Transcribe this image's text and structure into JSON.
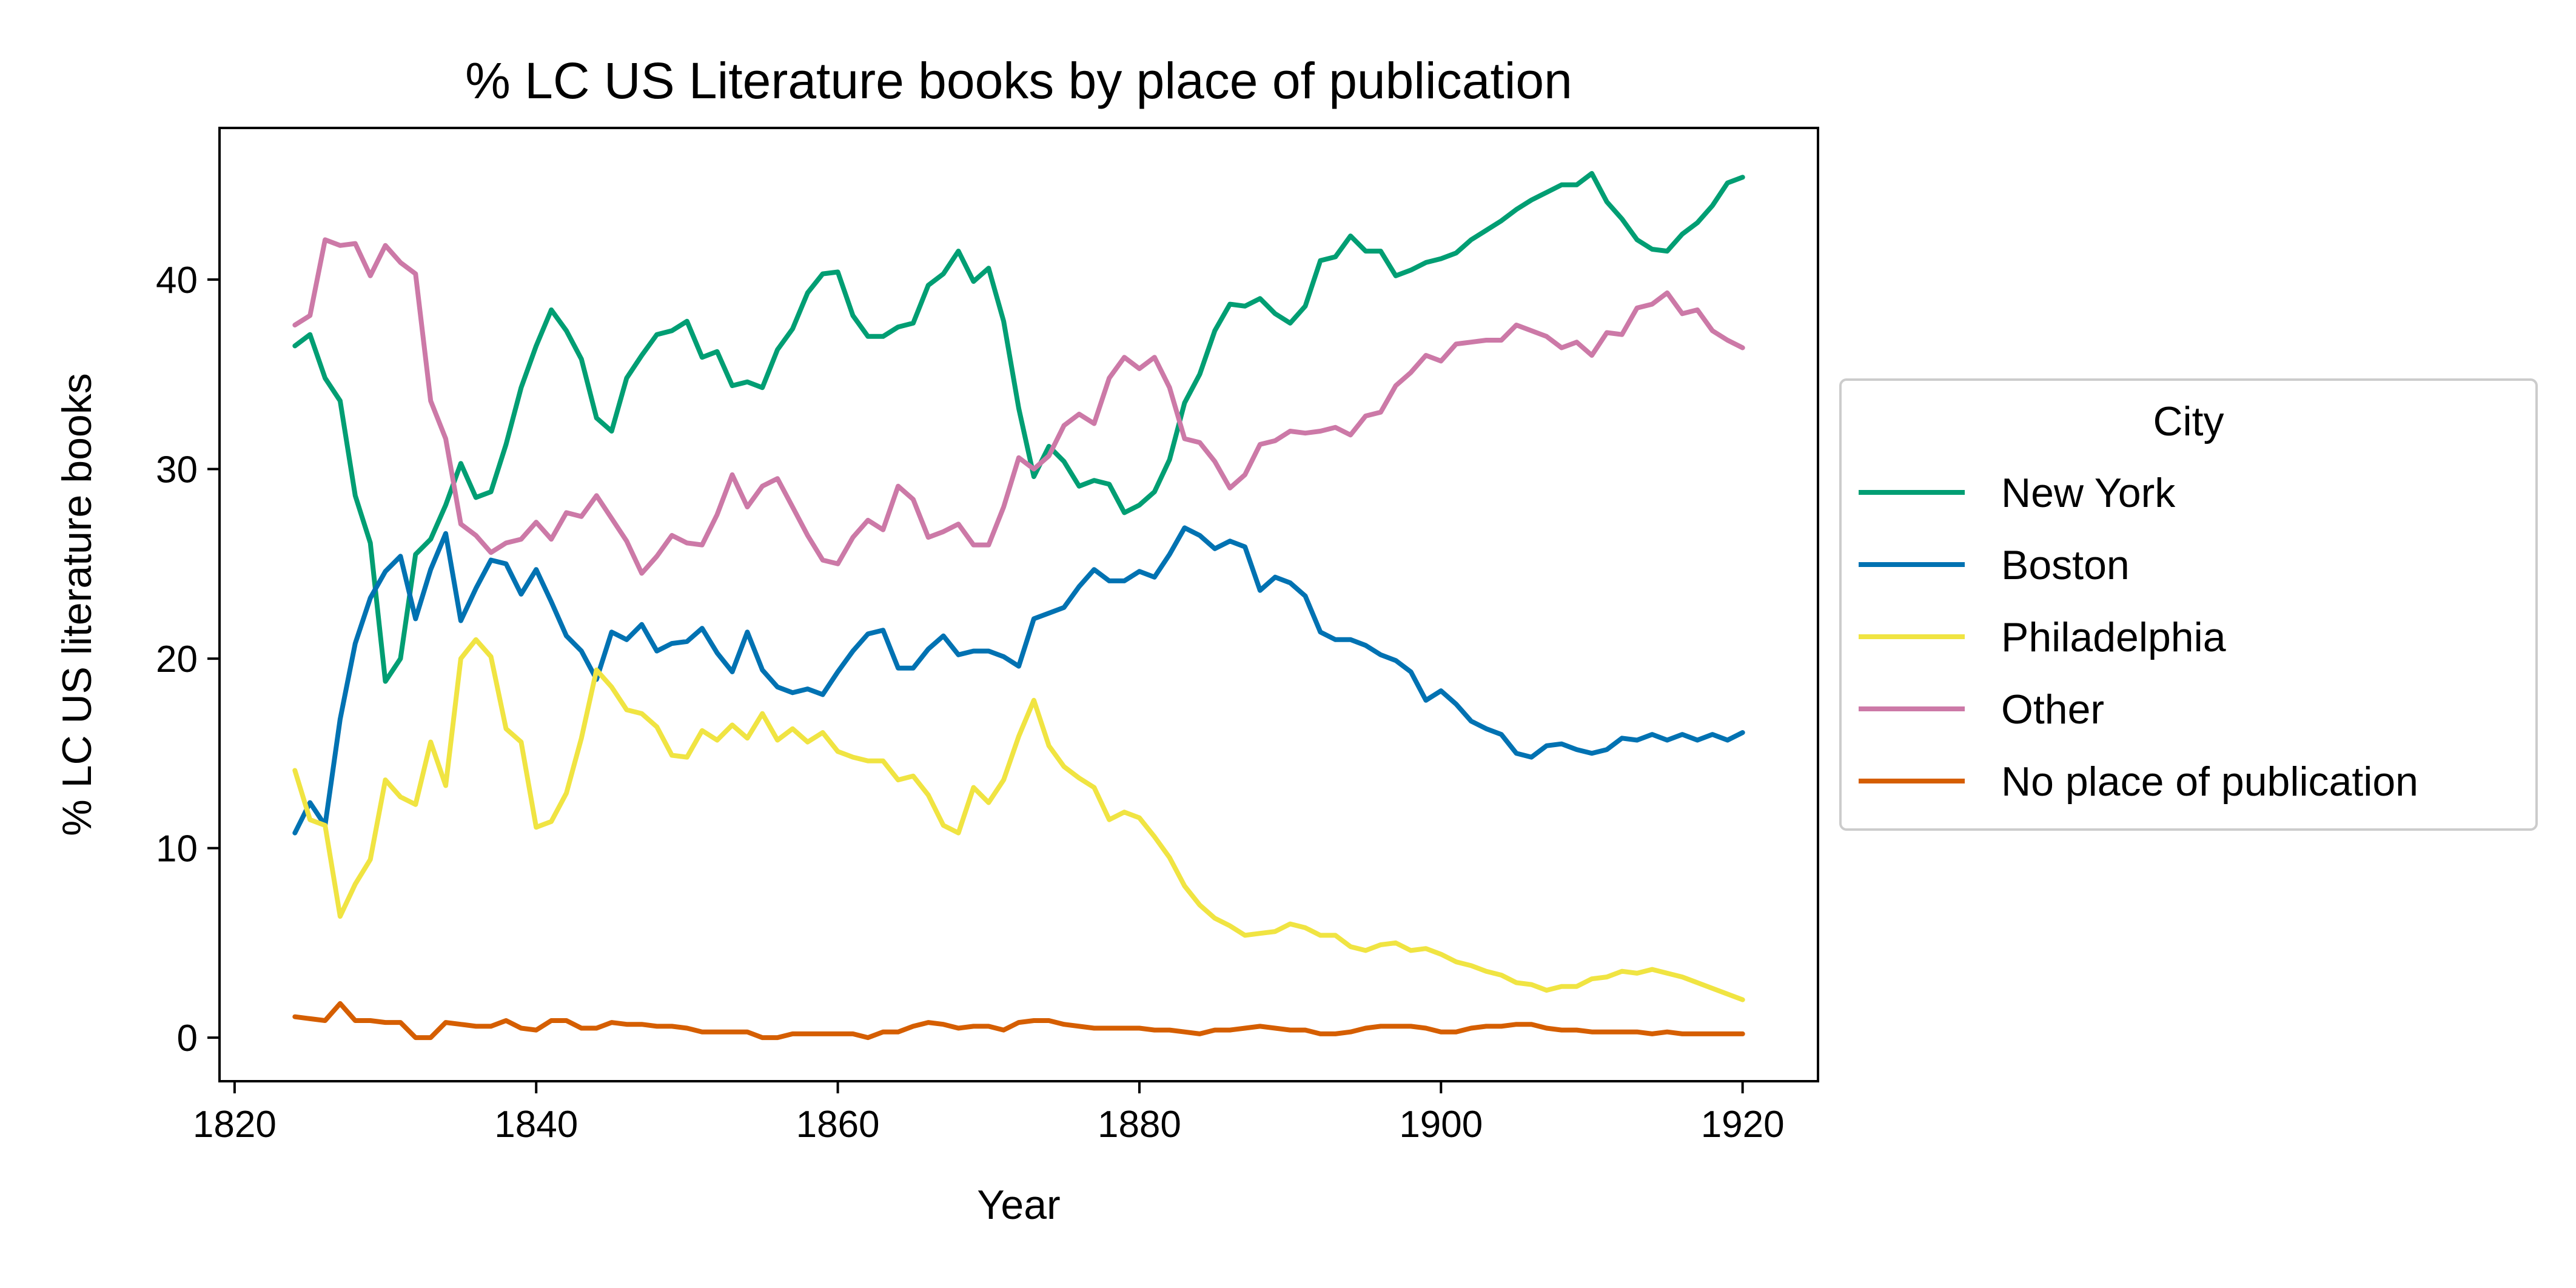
{
  "chart_data": {
    "type": "line",
    "title": "% LC US Literature books by place of publication",
    "xlabel": "Year",
    "ylabel": "% LC US literature books",
    "xlim": [
      1819,
      1925
    ],
    "ylim": [
      -2.3,
      48
    ],
    "x_ticks": [
      1820,
      1840,
      1860,
      1880,
      1900,
      1920
    ],
    "y_ticks": [
      0,
      10,
      20,
      30,
      40
    ],
    "grid": false,
    "legend": {
      "title": "City",
      "placement": "right-outside"
    },
    "x": [
      1824,
      1825,
      1826,
      1827,
      1828,
      1829,
      1830,
      1831,
      1832,
      1833,
      1834,
      1835,
      1836,
      1837,
      1838,
      1839,
      1840,
      1841,
      1842,
      1843,
      1844,
      1845,
      1846,
      1847,
      1848,
      1849,
      1850,
      1851,
      1852,
      1853,
      1854,
      1855,
      1856,
      1857,
      1858,
      1859,
      1860,
      1861,
      1862,
      1863,
      1864,
      1865,
      1866,
      1867,
      1868,
      1869,
      1870,
      1871,
      1872,
      1873,
      1874,
      1875,
      1876,
      1877,
      1878,
      1879,
      1880,
      1881,
      1882,
      1883,
      1884,
      1885,
      1886,
      1887,
      1888,
      1889,
      1890,
      1891,
      1892,
      1893,
      1894,
      1895,
      1896,
      1897,
      1898,
      1899,
      1900,
      1901,
      1902,
      1903,
      1904,
      1905,
      1906,
      1907,
      1908,
      1909,
      1910,
      1911,
      1912,
      1913,
      1914,
      1915,
      1916,
      1917,
      1918,
      1919,
      1920
    ],
    "series": [
      {
        "name": "New York",
        "color": "#009e73",
        "values": [
          36.5,
          37.1,
          34.8,
          33.6,
          28.6,
          26.1,
          18.8,
          20.0,
          25.5,
          26.3,
          28.1,
          30.3,
          28.5,
          28.8,
          31.3,
          34.3,
          36.5,
          38.4,
          37.3,
          35.8,
          32.7,
          32.0,
          34.8,
          36.0,
          37.1,
          37.3,
          37.8,
          35.9,
          36.2,
          34.4,
          34.6,
          34.3,
          36.3,
          37.4,
          39.3,
          40.3,
          40.4,
          38.1,
          37.0,
          37.0,
          37.5,
          37.7,
          39.7,
          40.3,
          41.5,
          39.9,
          40.6,
          37.8,
          33.2,
          29.6,
          31.2,
          30.4,
          29.1,
          29.4,
          29.2,
          27.7,
          28.1,
          28.8,
          30.5,
          33.5,
          35.0,
          37.3,
          38.7,
          38.6,
          39.0,
          38.2,
          37.7,
          38.6,
          41.0,
          41.2,
          42.3,
          41.5,
          41.5,
          40.2,
          40.5,
          40.9,
          41.1,
          41.4,
          42.1,
          42.6,
          43.1,
          43.7,
          44.2,
          44.6,
          45.0,
          45.0,
          45.6,
          44.1,
          43.2,
          42.1,
          41.6,
          41.5,
          42.4,
          43.0,
          43.9,
          45.1,
          45.4
        ]
      },
      {
        "name": "Boston",
        "color": "#0072b2",
        "values": [
          10.8,
          12.4,
          11.2,
          16.8,
          20.8,
          23.2,
          24.6,
          25.4,
          22.1,
          24.7,
          26.6,
          22.0,
          23.7,
          25.2,
          25.0,
          23.4,
          24.7,
          23.0,
          21.2,
          20.4,
          18.9,
          21.4,
          21.0,
          21.8,
          20.4,
          20.8,
          20.9,
          21.6,
          20.3,
          19.3,
          21.4,
          19.4,
          18.5,
          18.2,
          18.4,
          18.1,
          19.3,
          20.4,
          21.3,
          21.5,
          19.5,
          19.5,
          20.5,
          21.2,
          20.2,
          20.4,
          20.4,
          20.1,
          19.6,
          22.1,
          22.4,
          22.7,
          23.8,
          24.7,
          24.1,
          24.1,
          24.6,
          24.3,
          25.5,
          26.9,
          26.5,
          25.8,
          26.2,
          25.9,
          23.6,
          24.3,
          24.0,
          23.3,
          21.4,
          21.0,
          21.0,
          20.7,
          20.2,
          19.9,
          19.3,
          17.8,
          18.3,
          17.6,
          16.7,
          16.3,
          16.0,
          15.0,
          14.8,
          15.4,
          15.5,
          15.2,
          15.0,
          15.2,
          15.8,
          15.7,
          16.0,
          15.7,
          16.0,
          15.7,
          16.0,
          15.7,
          16.1
        ]
      },
      {
        "name": "Philadelphia",
        "color": "#f0e442",
        "values": [
          14.1,
          11.5,
          11.2,
          6.4,
          8.1,
          9.4,
          13.6,
          12.7,
          12.3,
          15.6,
          13.3,
          20.0,
          21.0,
          20.1,
          16.3,
          15.6,
          11.1,
          11.4,
          12.9,
          15.8,
          19.4,
          18.5,
          17.3,
          17.1,
          16.4,
          14.9,
          14.8,
          16.2,
          15.7,
          16.5,
          15.8,
          17.1,
          15.7,
          16.3,
          15.6,
          16.1,
          15.1,
          14.8,
          14.6,
          14.6,
          13.6,
          13.8,
          12.8,
          11.2,
          10.8,
          13.2,
          12.4,
          13.6,
          15.9,
          17.8,
          15.4,
          14.3,
          13.7,
          13.2,
          11.5,
          11.9,
          11.6,
          10.6,
          9.5,
          8.0,
          7.0,
          6.3,
          5.9,
          5.4,
          5.5,
          5.6,
          6.0,
          5.8,
          5.4,
          5.4,
          4.8,
          4.6,
          4.9,
          5.0,
          4.6,
          4.7,
          4.4,
          4.0,
          3.8,
          3.5,
          3.3,
          2.9,
          2.8,
          2.5,
          2.7,
          2.7,
          3.1,
          3.2,
          3.5,
          3.4,
          3.6,
          3.4,
          3.2,
          2.9,
          2.6,
          2.3,
          2.0
        ]
      },
      {
        "name": "Other",
        "color": "#cc79a7",
        "values": [
          37.6,
          38.1,
          42.1,
          41.8,
          41.9,
          40.2,
          41.8,
          40.9,
          40.3,
          33.6,
          31.6,
          27.1,
          26.5,
          25.6,
          26.1,
          26.3,
          27.2,
          26.3,
          27.7,
          27.5,
          28.6,
          27.4,
          26.2,
          24.5,
          25.4,
          26.5,
          26.1,
          26.0,
          27.6,
          29.7,
          28.0,
          29.1,
          29.5,
          28.0,
          26.5,
          25.2,
          25.0,
          26.4,
          27.3,
          26.8,
          29.1,
          28.4,
          26.4,
          26.7,
          27.1,
          26.0,
          26.0,
          28.0,
          30.6,
          30.0,
          30.7,
          32.3,
          32.9,
          32.4,
          34.8,
          35.9,
          35.3,
          35.9,
          34.3,
          31.6,
          31.4,
          30.4,
          29.0,
          29.7,
          31.3,
          31.5,
          32.0,
          31.9,
          32.0,
          32.2,
          31.8,
          32.8,
          33.0,
          34.4,
          35.1,
          36.0,
          35.7,
          36.6,
          36.7,
          36.8,
          36.8,
          37.6,
          37.3,
          37.0,
          36.4,
          36.7,
          36.0,
          37.2,
          37.1,
          38.5,
          38.7,
          39.3,
          38.2,
          38.4,
          37.3,
          36.8,
          36.4
        ]
      },
      {
        "name": "No place of publication",
        "color": "#d55e00",
        "values": [
          1.1,
          1.0,
          0.9,
          1.8,
          0.9,
          0.9,
          0.8,
          0.8,
          0.0,
          0.0,
          0.8,
          0.7,
          0.6,
          0.6,
          0.9,
          0.5,
          0.4,
          0.9,
          0.9,
          0.5,
          0.5,
          0.8,
          0.7,
          0.7,
          0.6,
          0.6,
          0.5,
          0.3,
          0.3,
          0.3,
          0.3,
          0.0,
          0.0,
          0.2,
          0.2,
          0.2,
          0.2,
          0.2,
          0.0,
          0.3,
          0.3,
          0.6,
          0.8,
          0.7,
          0.5,
          0.6,
          0.6,
          0.4,
          0.8,
          0.9,
          0.9,
          0.7,
          0.6,
          0.5,
          0.5,
          0.5,
          0.5,
          0.4,
          0.4,
          0.3,
          0.2,
          0.4,
          0.4,
          0.5,
          0.6,
          0.5,
          0.4,
          0.4,
          0.2,
          0.2,
          0.3,
          0.5,
          0.6,
          0.6,
          0.6,
          0.5,
          0.3,
          0.3,
          0.5,
          0.6,
          0.6,
          0.7,
          0.7,
          0.5,
          0.4,
          0.4,
          0.3,
          0.3,
          0.3,
          0.3,
          0.2,
          0.3,
          0.2,
          0.2,
          0.2,
          0.2,
          0.2
        ]
      }
    ]
  }
}
